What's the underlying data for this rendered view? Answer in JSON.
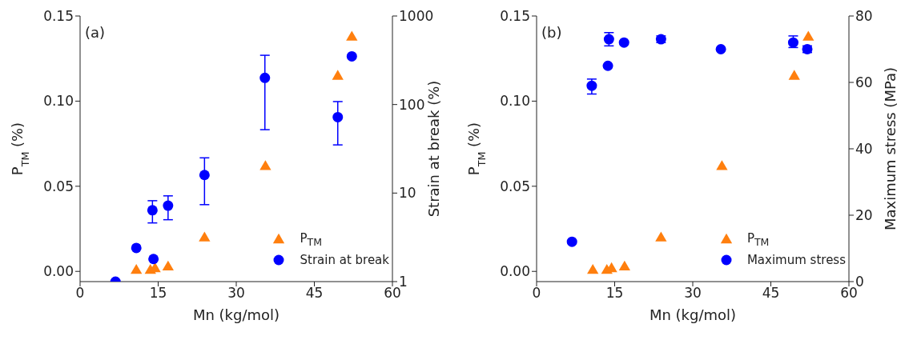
{
  "chart_data": [
    {
      "type": "scatter",
      "xlabel": "Mn (kg/mol)",
      "ylabel": "P$_{TM}$ (%)",
      "y2label": "Strain at break (%)",
      "annotations": [
        "(a)"
      ],
      "legend": "bottom right",
      "log": "y2",
      "xlim": [
        0,
        60
      ],
      "xticks": [
        0,
        15,
        30,
        45,
        60
      ],
      "ylim": [
        -0.006,
        0.15
      ],
      "yticks": [
        {
          "value": 0,
          "label": "0.00"
        },
        {
          "value": 0.05,
          "label": "0.05"
        },
        {
          "value": 0.1,
          "label": "0.10"
        },
        {
          "value": 0.15,
          "label": "0.15"
        }
      ],
      "y2lim": [
        1,
        1000
      ],
      "y2ticks": [
        1,
        10,
        100,
        1000
      ],
      "series": [
        {
          "name": "P$_{TM}$",
          "color": "#ff7f0e",
          "marker": "triangle",
          "x": [
            10.8,
            13.5,
            14.4,
            16.9,
            23.9,
            35.6,
            49.5,
            52.2
          ],
          "values": [
            0.001,
            0.001,
            0.002,
            0.003,
            0.02,
            0.062,
            0.115,
            0.138
          ]
        },
        {
          "name": "Strain at break",
          "color": "#0000ff",
          "marker": "circle",
          "axis": "y2",
          "x": [
            6.8,
            10.8,
            14.1,
            13.9,
            16.9,
            23.9,
            35.5,
            49.5,
            52.2
          ],
          "values": [
            1,
            2.4,
            1.8,
            6.4,
            7.2,
            16,
            200,
            72,
            350
          ],
          "errors": [
            null,
            null,
            null,
            [
              4.6,
              8.2
            ],
            [
              5,
              9.3
            ],
            [
              7.4,
              25
            ],
            [
              52,
              360
            ],
            [
              35,
              108
            ],
            null
          ]
        }
      ]
    },
    {
      "type": "scatter",
      "xlabel": "Mn (kg/mol)",
      "ylabel": "P$_{TM}$ (%)",
      "y2label": "Maximum stress (MPa)",
      "annotations": [
        "(b)"
      ],
      "legend": "bottom right",
      "xlim": [
        0,
        60
      ],
      "xticks": [
        0,
        15,
        30,
        45,
        60
      ],
      "ylim": [
        -0.006,
        0.15
      ],
      "yticks": [
        {
          "value": 0,
          "label": "0.00"
        },
        {
          "value": 0.05,
          "label": "0.05"
        },
        {
          "value": 0.1,
          "label": "0.10"
        },
        {
          "value": 0.15,
          "label": "0.15"
        }
      ],
      "y2lim": [
        0,
        80
      ],
      "y2ticks": [
        0,
        20,
        40,
        60,
        80
      ],
      "series": [
        {
          "name": "P$_{TM}$",
          "color": "#ff7f0e",
          "marker": "triangle",
          "x": [
            10.8,
            13.5,
            14.4,
            16.9,
            23.9,
            35.6,
            49.5,
            52.2
          ],
          "values": [
            0.001,
            0.001,
            0.002,
            0.003,
            0.02,
            0.062,
            0.115,
            0.138
          ]
        },
        {
          "name": "Maximum stress",
          "color": "#0000ff",
          "marker": "circle",
          "axis": "y2",
          "x": [
            6.8,
            10.6,
            13.7,
            13.9,
            16.8,
            23.9,
            35.4,
            49.3,
            52
          ],
          "values": [
            12,
            59,
            65,
            73,
            72,
            73,
            70,
            72,
            70
          ],
          "errors": [
            null,
            [
              56.5,
              61
            ],
            null,
            [
              71,
              75
            ],
            null,
            1,
            null,
            [
              70.5,
              74
            ],
            1
          ]
        }
      ]
    }
  ]
}
